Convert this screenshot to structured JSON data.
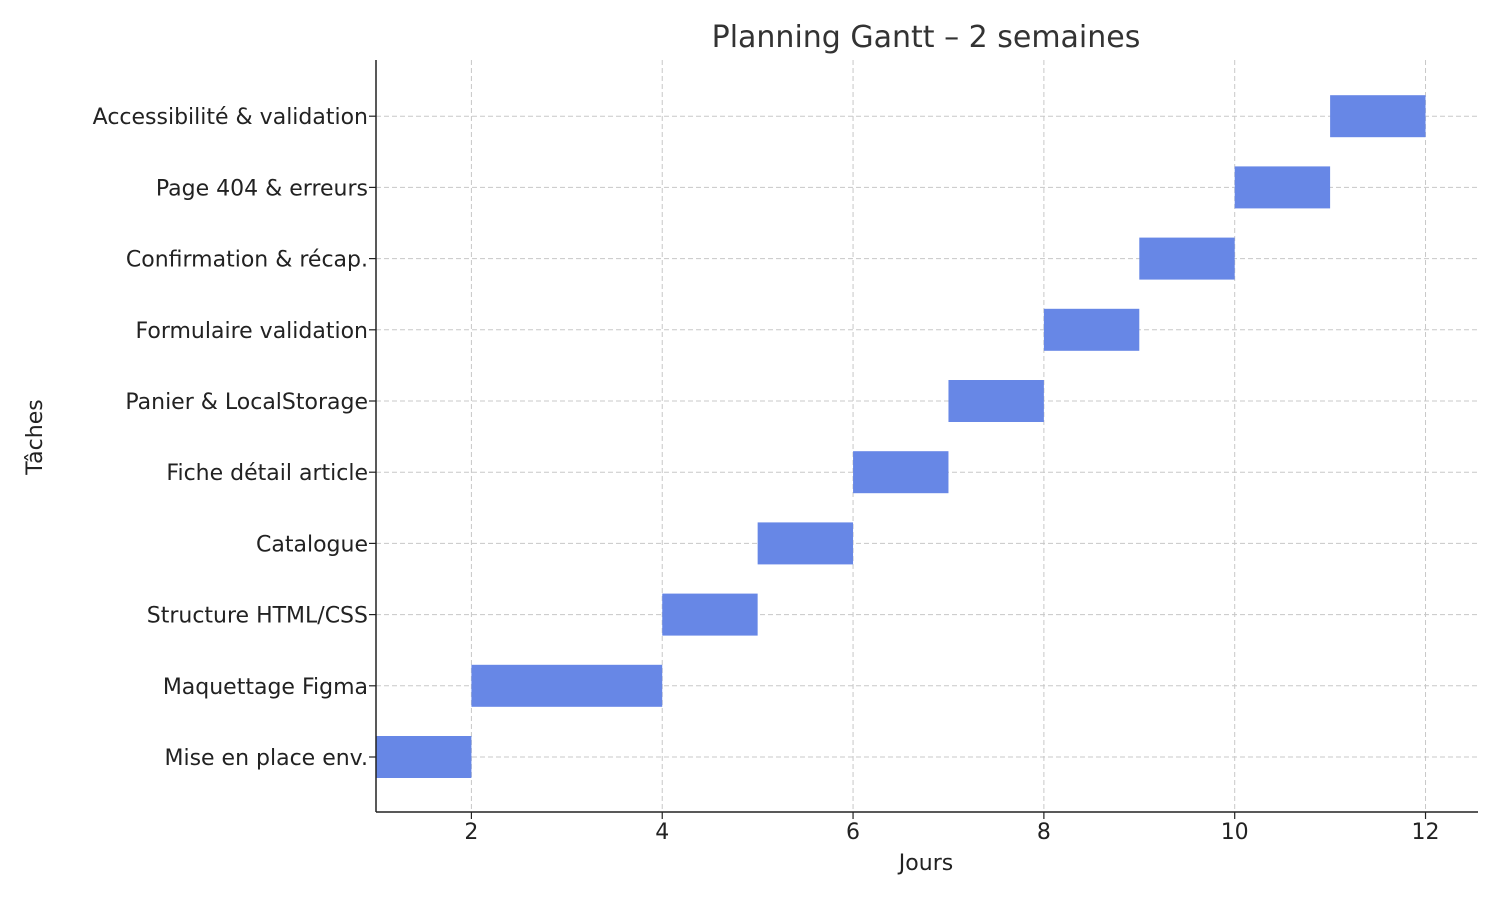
{
  "chart_data": {
    "type": "bar",
    "orientation": "horizontal",
    "title": "Planning Gantt – 2 semaines",
    "xlabel": "Jours",
    "ylabel": "Tâches",
    "xlim": [
      1,
      12.55
    ],
    "xticks": [
      2,
      4,
      6,
      8,
      10,
      12
    ],
    "grid": true,
    "bar_color": "#6787e6",
    "tasks": [
      {
        "name": "Mise en place env.",
        "start": 1,
        "end": 2
      },
      {
        "name": "Maquettage Figma",
        "start": 2,
        "end": 4
      },
      {
        "name": "Structure HTML/CSS",
        "start": 4,
        "end": 5
      },
      {
        "name": "Catalogue",
        "start": 5,
        "end": 6
      },
      {
        "name": "Fiche détail article",
        "start": 6,
        "end": 7
      },
      {
        "name": "Panier & LocalStorage",
        "start": 7,
        "end": 8
      },
      {
        "name": "Formulaire validation",
        "start": 8,
        "end": 9
      },
      {
        "name": "Confirmation & récap.",
        "start": 9,
        "end": 10
      },
      {
        "name": "Page 404 & erreurs",
        "start": 10,
        "end": 11
      },
      {
        "name": "Accessibilité & validation",
        "start": 11,
        "end": 12
      }
    ]
  }
}
